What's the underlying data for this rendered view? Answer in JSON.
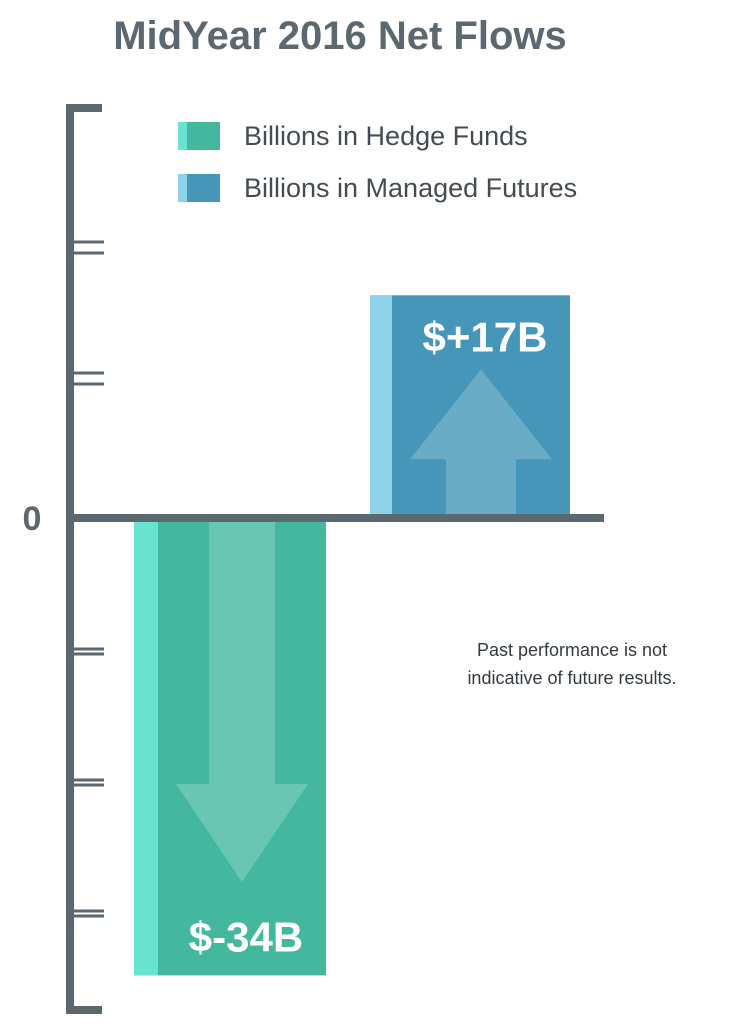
{
  "chart_data": {
    "type": "bar",
    "title": "MidYear 2016 Net Flows",
    "series": [
      {
        "name": "Billions in Hedge Funds",
        "value": -34,
        "label": "$-34B",
        "color": "#44b89f",
        "edge_color": "#67e3cf",
        "arrow": "down"
      },
      {
        "name": "Billions in Managed Futures",
        "value": 17,
        "label": "$+17B",
        "color": "#4596b8",
        "edge_color": "#8fd3ea",
        "arrow": "up"
      }
    ],
    "ylim": [
      -40,
      20
    ],
    "ytick_step": 10,
    "zero_label": "0",
    "legend_position": "top-left",
    "grid": false
  },
  "disclaimer": {
    "line1": "Past performance is not",
    "line2": "indicative of future results."
  },
  "colors": {
    "axis": "#5b6870"
  }
}
